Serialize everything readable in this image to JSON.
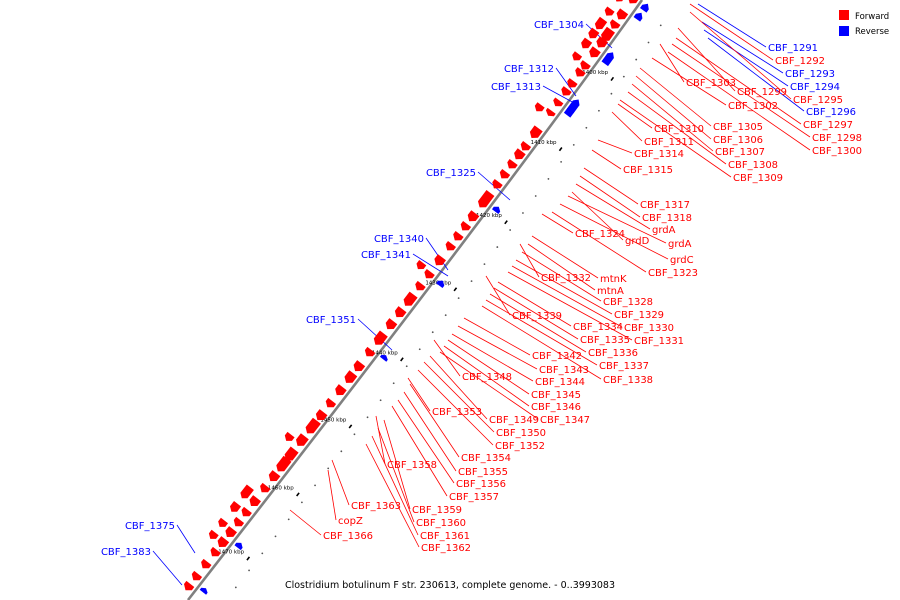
{
  "caption": "Clostridium botulinum F str. 230613, complete genome. - 0..3993083",
  "legend": [
    {
      "label": "Forward",
      "color": "#ff0000"
    },
    {
      "label": "Reverse",
      "color": "#0000ff"
    }
  ],
  "colors": {
    "forward": "#ff0000",
    "reverse": "#0000ff",
    "backbone": "#808080"
  },
  "kbp_ticks": [
    "1400 kbp",
    "1410 kbp",
    "1420 kbp",
    "1430 kbp",
    "1440 kbp",
    "1450 kbp",
    "1460 kbp",
    "1470 kbp"
  ],
  "reverse_labels": [
    "CBF_1304",
    "CBF_1312",
    "CBF_1313",
    "CBF_1325",
    "CBF_1340",
    "CBF_1341",
    "CBF_1351",
    "CBF_1375",
    "CBF_1383",
    "CBF_1291",
    "CBF_1293",
    "CBF_1294",
    "CBF_1296"
  ],
  "forward_labels": [
    "CBF_1292",
    "CBF_1299",
    "CBF_1295",
    "CBF_1297",
    "CBF_1298",
    "CBF_1300",
    "CBF_1303",
    "CBF_1302",
    "CBF_1305",
    "CBF_1306",
    "CBF_1307",
    "CBF_1308",
    "CBF_1309",
    "CBF_1310",
    "CBF_1311",
    "CBF_1314",
    "CBF_1315",
    "CBF_1317",
    "CBF_1318",
    "grdA",
    "grdD",
    "grdA",
    "grdC",
    "CBF_1323",
    "CBF_1324",
    "CBF_1332",
    "mtnK",
    "mtnA",
    "CBF_1328",
    "CBF_1329",
    "CBF_1330",
    "CBF_1331",
    "CBF_1339",
    "CBF_1334",
    "CBF_1335",
    "CBF_1336",
    "CBF_1337",
    "CBF_1338",
    "CBF_1342",
    "CBF_1343",
    "CBF_1344",
    "CBF_1345",
    "CBF_1346",
    "CBF_1347",
    "CBF_1348",
    "CBF_1349",
    "CBF_1350",
    "CBF_1352",
    "CBF_1353",
    "CBF_1354",
    "CBF_1355",
    "CBF_1356",
    "CBF_1357",
    "CBF_1358",
    "CBF_1359",
    "CBF_1360",
    "CBF_1361",
    "CBF_1362",
    "CBF_1363",
    "copZ",
    "CBF_1366"
  ]
}
